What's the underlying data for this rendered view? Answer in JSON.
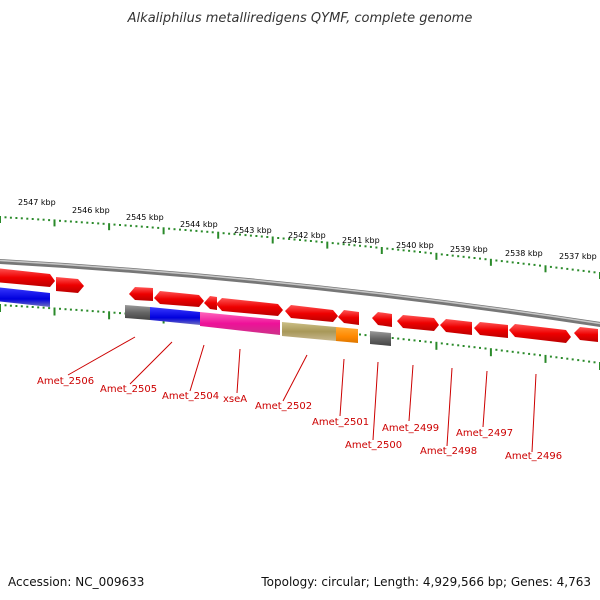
{
  "title": "Alkaliphilus metalliredigens QYMF, complete genome",
  "footer": {
    "accession": "Accession: NC_009633",
    "topology": "Topology: circular; Length: 4,929,566 bp; Genes: 4,763"
  },
  "ruler": {
    "labels": [
      "2547 kbp",
      "2546 kbp",
      "2545 kbp",
      "2544 kbp",
      "2543 kbp",
      "2542 kbp",
      "2541 kbp",
      "2540 kbp",
      "2539 kbp",
      "2538 kbp",
      "2537 kbp"
    ]
  },
  "genes": {
    "labels": [
      "Amet_2506",
      "Amet_2505",
      "Amet_2504",
      "xseA",
      "Amet_2502",
      "Amet_2501",
      "Amet_2500",
      "Amet_2499",
      "Amet_2498",
      "Amet_2497",
      "Amet_2496"
    ]
  },
  "colors": {
    "forward_gene": "#ff0000",
    "backbone": "#888888",
    "tick": "#2a8a2a",
    "label": "#cc0000",
    "gray_gene": "#666666",
    "blue_gene": "#1010ee",
    "pink_gene": "#ee3399",
    "olive_gene": "#b0a060",
    "orange_gene": "#ff8800"
  }
}
